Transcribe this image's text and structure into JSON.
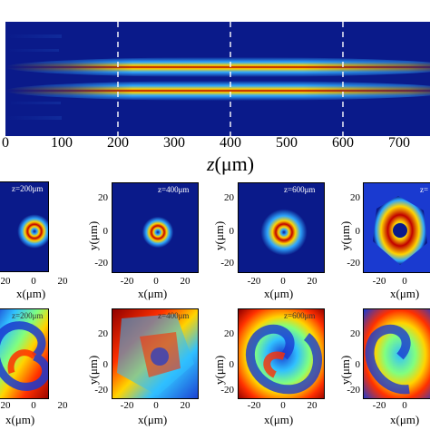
{
  "top_plot": {
    "x_ticks": [
      "0",
      "100",
      "200",
      "300",
      "400",
      "500",
      "600",
      "700"
    ],
    "x_label_var": "z",
    "x_label_unit": "(μm)",
    "dashed_markers": [
      200,
      400,
      600
    ],
    "x_range": [
      0,
      800
    ]
  },
  "intensity_row": {
    "panels": [
      {
        "z_label": "z=200μm"
      },
      {
        "z_label": "z=400μm"
      },
      {
        "z_label": "z=600μm"
      },
      {
        "z_label": "z="
      }
    ],
    "y_ticks": [
      "20",
      "0",
      "-20"
    ],
    "x_ticks": [
      "20",
      "0",
      "20"
    ],
    "x_ticks_full": [
      "-20",
      "0",
      "20"
    ],
    "x_label": "x(μm)",
    "y_label": "y(μm)"
  },
  "phase_row": {
    "panels": [
      {
        "z_label": "z=200μm"
      },
      {
        "z_label": "z=400μm"
      },
      {
        "z_label": "z=600μm"
      },
      {
        "z_label": ""
      }
    ],
    "y_ticks": [
      "20",
      "0",
      "-20"
    ],
    "x_ticks": [
      "20",
      "0",
      "20"
    ],
    "x_ticks_full": [
      "-20",
      "0",
      "20"
    ],
    "x_label": "x(μm)",
    "y_label": "y(μm)"
  },
  "colors": {
    "background_dark": "#0a1a8a",
    "beam_red": "#c00000",
    "beam_yellow": "#ffd000",
    "beam_cyan": "#30c0ff"
  }
}
